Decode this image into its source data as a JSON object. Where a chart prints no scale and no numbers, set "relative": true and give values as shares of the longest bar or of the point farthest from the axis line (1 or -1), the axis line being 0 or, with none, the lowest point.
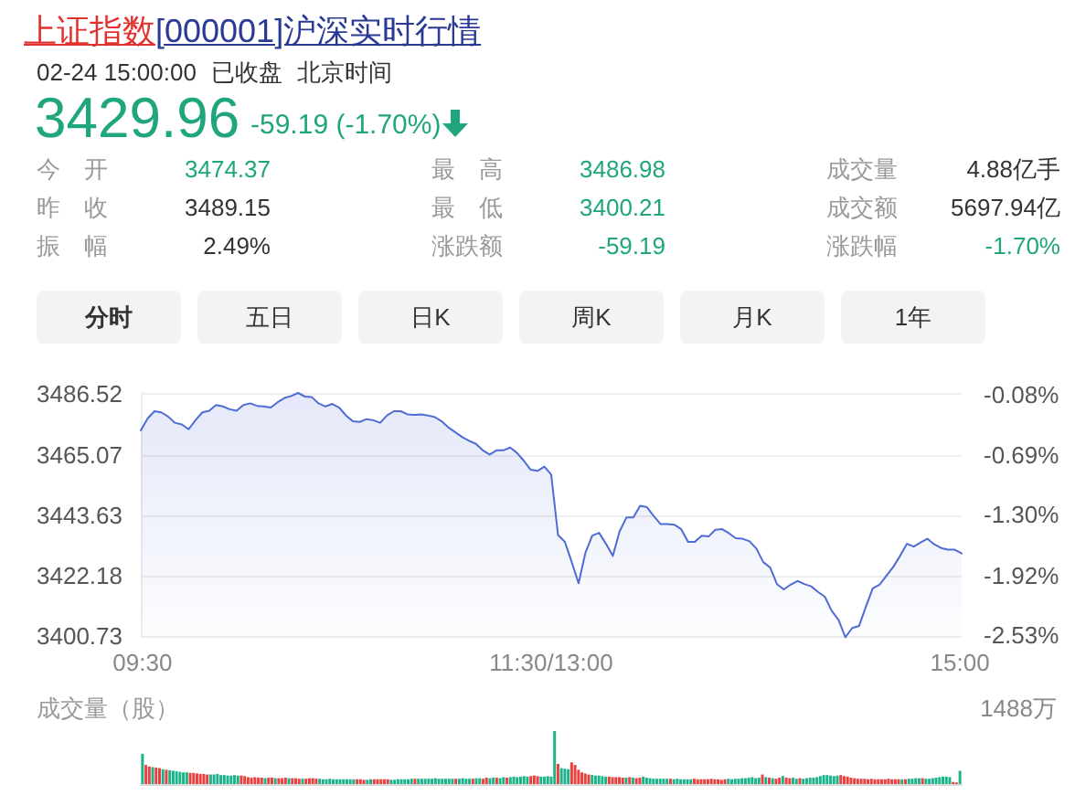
{
  "chart_data": [
    {
      "type": "other",
      "title": "上证指数",
      "subtitle": "[000001]沪深实时行情",
      "annotations": [
        "02-24 15:00:00",
        "已收盘",
        "北京时间",
        "3429.96",
        "-59.19 (-1.70%)",
        "今开",
        "3474.37",
        "最高",
        "3486.98",
        "成交量",
        "4.88亿手",
        "昨收",
        "3489.15",
        "最低",
        "3400.21",
        "成交额",
        "5697.94亿",
        "振幅",
        "2.49%",
        "涨跌额",
        "-59.19",
        "涨跌幅",
        "-1.70%",
        "分时",
        "五日",
        "日K",
        "周K",
        "月K",
        "1年"
      ]
    },
    {
      "type": "area",
      "color": "#4f6bd5",
      "tick_labels": "y",
      "categories": [
        null,
        null,
        null,
        null,
        null,
        null,
        null,
        null,
        null,
        null,
        null,
        null,
        null,
        null,
        null,
        null,
        null,
        null,
        null,
        null,
        null,
        null,
        null,
        null,
        null,
        null,
        null,
        null,
        null,
        null,
        null,
        null,
        null,
        null,
        null,
        null,
        null,
        null,
        null,
        null,
        null,
        null,
        null,
        null,
        null,
        null,
        null,
        null,
        null,
        null,
        null,
        null,
        null,
        null,
        null,
        null,
        null,
        null,
        null,
        null,
        null,
        null,
        null,
        null,
        null,
        null,
        null,
        null,
        null,
        null,
        null,
        null,
        null,
        null,
        null,
        null,
        null,
        null,
        null,
        null,
        null,
        null,
        null,
        null,
        null,
        null,
        null,
        null,
        null,
        null,
        null,
        null,
        null,
        null,
        null,
        null,
        null,
        null,
        null,
        null,
        null,
        null,
        null,
        null,
        null,
        null,
        null,
        null,
        null,
        null,
        null,
        null,
        null,
        null,
        null,
        null,
        null,
        null,
        null,
        null,
        null
      ],
      "values": [
        3473.7,
        3477.9,
        3480.5,
        3480.1,
        3478.6,
        3476.4,
        3475.8,
        3474.1,
        3477.3,
        3480.1,
        3480.7,
        3482.7,
        3482.2,
        3481.2,
        3480.7,
        3482.7,
        3483.3,
        3482.4,
        3482.2,
        3481.8,
        3483.7,
        3485.2,
        3485.9,
        3487.0,
        3485.7,
        3485.5,
        3483.3,
        3482.2,
        3483.1,
        3481.8,
        3479.0,
        3476.9,
        3476.7,
        3477.7,
        3477.3,
        3476.4,
        3479.0,
        3480.5,
        3480.5,
        3479.4,
        3479.2,
        3479.4,
        3479.0,
        3478.4,
        3476.9,
        3474.7,
        3473.0,
        3471.3,
        3470.0,
        3468.9,
        3466.6,
        3465.1,
        3466.6,
        3466.6,
        3467.6,
        3465.7,
        3462.9,
        3459.7,
        3459.3,
        3460.8,
        3458.0,
        3436.5,
        3434.1,
        3426.9,
        3419.4,
        3430.2,
        3436.3,
        3437.3,
        3433.4,
        3429.1,
        3437.8,
        3442.8,
        3442.8,
        3446.9,
        3446.4,
        3443.2,
        3440.4,
        3440.4,
        3440.2,
        3438.6,
        3434.1,
        3434.1,
        3436.3,
        3436.0,
        3438.4,
        3438.6,
        3437.1,
        3435.4,
        3435.2,
        3434.3,
        3431.7,
        3426.9,
        3425.0,
        3419.1,
        3417.2,
        3418.9,
        3420.2,
        3419.1,
        3418.3,
        3416.3,
        3414.6,
        3409.6,
        3406.4,
        3400.2,
        3403.5,
        3404.2,
        3411.1,
        3417.6,
        3418.9,
        3422.0,
        3425.2,
        3429.1,
        3433.4,
        3432.4,
        3433.9,
        3435.2,
        3433.2,
        3431.9,
        3431.3,
        3431.3,
        3430.0
      ],
      "ylim": [
        3400,
        3487
      ],
      "yticks": [
        3486.52,
        3465.07,
        3443.63,
        3422.18,
        3400.73
      ],
      "y2lim": [
        -2.555,
        -0.062
      ],
      "y2ticks": [
        {
          "value": -0.08,
          "label": "-0.08%"
        },
        {
          "value": -0.69,
          "label": "-0.69%"
        },
        {
          "value": -1.3,
          "label": "-1.30%"
        },
        {
          "value": -1.92,
          "label": "-1.92%"
        },
        {
          "value": -2.53,
          "label": "-2.53%"
        }
      ],
      "grid": "y"
    },
    {
      "type": "bar",
      "relative": true,
      "tick_labels": "x",
      "ylabel": "成交量（股）",
      "annotations": [
        "1488万"
      ],
      "categories": [
        "09:30",
        null,
        null,
        null,
        null,
        null,
        null,
        null,
        null,
        null,
        null,
        null,
        null,
        null,
        null,
        null,
        null,
        null,
        null,
        null,
        null,
        null,
        null,
        null,
        null,
        null,
        null,
        null,
        null,
        null,
        null,
        null,
        null,
        null,
        null,
        null,
        null,
        null,
        null,
        null,
        null,
        null,
        null,
        null,
        null,
        null,
        null,
        null,
        null,
        null,
        null,
        null,
        null,
        null,
        null,
        null,
        null,
        null,
        null,
        null,
        null,
        null,
        null,
        null,
        null,
        null,
        null,
        null,
        null,
        null,
        null,
        null,
        null,
        null,
        null,
        null,
        null,
        null,
        null,
        null,
        null,
        null,
        null,
        null,
        null,
        null,
        null,
        null,
        null,
        null,
        null,
        null,
        null,
        null,
        null,
        null,
        null,
        null,
        null,
        null,
        null,
        null,
        null,
        null,
        null,
        null,
        null,
        null,
        null,
        null,
        null,
        null,
        null,
        null,
        null,
        null,
        null,
        null,
        null,
        null,
        "11:30/13:00",
        null,
        null,
        null,
        null,
        null,
        null,
        null,
        null,
        null,
        null,
        null,
        null,
        null,
        null,
        null,
        null,
        null,
        null,
        null,
        null,
        null,
        null,
        null,
        null,
        null,
        null,
        null,
        null,
        null,
        null,
        null,
        null,
        null,
        null,
        null,
        null,
        null,
        null,
        null,
        null,
        null,
        null,
        null,
        null,
        null,
        null,
        null,
        null,
        null,
        null,
        null,
        null,
        null,
        null,
        null,
        null,
        null,
        null,
        null,
        null,
        null,
        null,
        null,
        null,
        null,
        null,
        null,
        null,
        null,
        null,
        null,
        null,
        null,
        null,
        null,
        null,
        null,
        null,
        null,
        null,
        null,
        null,
        null,
        null,
        null,
        null,
        null,
        null,
        null,
        null,
        null,
        null,
        null,
        null,
        null,
        null,
        null,
        null,
        null,
        null,
        null,
        null,
        null,
        null,
        null,
        null,
        null,
        null,
        null,
        null,
        null,
        null,
        null,
        null,
        null,
        null,
        null,
        null,
        null,
        "15:00"
      ],
      "values": [
        0.57,
        0.36,
        0.33,
        0.32,
        0.31,
        0.3,
        0.28,
        0.27,
        0.26,
        0.25,
        0.24,
        0.23,
        0.22,
        0.22,
        0.21,
        0.21,
        0.2,
        0.19,
        0.19,
        0.18,
        0.18,
        0.18,
        0.19,
        0.17,
        0.17,
        0.16,
        0.16,
        0.17,
        0.16,
        0.16,
        0.15,
        0.13,
        0.12,
        0.13,
        0.12,
        0.12,
        0.11,
        0.12,
        0.12,
        0.11,
        0.11,
        0.11,
        0.12,
        0.11,
        0.11,
        0.11,
        0.1,
        0.1,
        0.1,
        0.11,
        0.11,
        0.1,
        0.1,
        0.09,
        0.09,
        0.1,
        0.09,
        0.09,
        0.09,
        0.09,
        0.09,
        0.09,
        0.09,
        0.09,
        0.09,
        0.08,
        0.08,
        0.09,
        0.09,
        0.09,
        0.09,
        0.09,
        0.09,
        0.08,
        0.08,
        0.09,
        0.09,
        0.09,
        0.09,
        0.1,
        0.1,
        0.1,
        0.1,
        0.1,
        0.1,
        0.1,
        0.11,
        0.1,
        0.1,
        0.1,
        0.1,
        0.1,
        0.1,
        0.1,
        0.11,
        0.1,
        0.1,
        0.1,
        0.11,
        0.11,
        0.1,
        0.12,
        0.11,
        0.12,
        0.12,
        0.11,
        0.13,
        0.12,
        0.13,
        0.14,
        0.13,
        0.14,
        0.15,
        0.14,
        0.15,
        0.16,
        0.15,
        0.14,
        0.14,
        0.15,
        0.14,
        1,
        0.38,
        0.3,
        0.29,
        0.28,
        0.41,
        0.36,
        0.27,
        0.22,
        0.2,
        0.18,
        0.17,
        0.16,
        0.16,
        0.15,
        0.14,
        0.14,
        0.13,
        0.13,
        0.13,
        0.12,
        0.12,
        0.13,
        0.12,
        0.11,
        0.12,
        0.14,
        0.12,
        0.11,
        0.1,
        0.1,
        0.1,
        0.1,
        0.1,
        0.1,
        0.09,
        0.1,
        0.09,
        0.09,
        0.09,
        0.09,
        0.1,
        0.09,
        0.09,
        0.09,
        0.09,
        0.1,
        0.09,
        0.09,
        0.08,
        0.09,
        0.1,
        0.09,
        0.1,
        0.1,
        0.11,
        0.11,
        0.12,
        0.13,
        0.11,
        0.12,
        0.18,
        0.13,
        0.12,
        0.11,
        0.1,
        0.12,
        0.15,
        0.12,
        0.11,
        0.12,
        0.1,
        0.11,
        0.1,
        0.11,
        0.12,
        0.12,
        0.13,
        0.15,
        0.17,
        0.17,
        0.16,
        0.15,
        0.16,
        0.17,
        0.15,
        0.14,
        0.12,
        0.11,
        0.1,
        0.1,
        0.1,
        0.09,
        0.1,
        0.09,
        0.09,
        0.09,
        0.09,
        0.1,
        0.09,
        0.09,
        0.09,
        0.09,
        0.09,
        0.1,
        0.1,
        0.11,
        0.11,
        0.11,
        0.1,
        0.1,
        0.11,
        0.12,
        0.13,
        0.14,
        0.14,
        0.13,
        0.04,
        0.03,
        0.25
      ],
      "colors": [
        "#1db38a",
        "#e8413f",
        "#e8413f",
        "#1db38a",
        "#e8413f",
        "#e8413f",
        "#1db38a",
        "#e8413f",
        "#1db38a",
        "#1db38a",
        "#1db38a",
        "#1db38a",
        "#1db38a",
        "#1db38a",
        "#e8413f",
        "#e8413f",
        "#e8413f",
        "#e8413f",
        "#e8413f",
        "#e8413f",
        "#1db38a",
        "#1db38a",
        "#1db38a",
        "#1db38a",
        "#1db38a",
        "#1db38a",
        "#1db38a",
        "#1db38a",
        "#1db38a",
        "#e8413f",
        "#e8413f",
        "#e8413f",
        "#e8413f",
        "#e8413f",
        "#e8413f",
        "#e8413f",
        "#1db38a",
        "#e8413f",
        "#e8413f",
        "#1db38a",
        "#e8413f",
        "#e8413f",
        "#e8413f",
        "#1db38a",
        "#e8413f",
        "#e8413f",
        "#e8413f",
        "#1db38a",
        "#e8413f",
        "#e8413f",
        "#e8413f",
        "#e8413f",
        "#1db38a",
        "#1db38a",
        "#1db38a",
        "#1db38a",
        "#1db38a",
        "#1db38a",
        "#1db38a",
        "#1db38a",
        "#1db38a",
        "#1db38a",
        "#1db38a",
        "#e8413f",
        "#e8413f",
        "#e8413f",
        "#1db38a",
        "#1db38a",
        "#e8413f",
        "#e8413f",
        "#e8413f",
        "#e8413f",
        "#e8413f",
        "#1db38a",
        "#1db38a",
        "#1db38a",
        "#1db38a",
        "#1db38a",
        "#1db38a",
        "#1db38a",
        "#e8413f",
        "#1db38a",
        "#1db38a",
        "#1db38a",
        "#1db38a",
        "#1db38a",
        "#1db38a",
        "#1db38a",
        "#1db38a",
        "#1db38a",
        "#1db38a",
        "#1db38a",
        "#e8413f",
        "#1db38a",
        "#1db38a",
        "#1db38a",
        "#1db38a",
        "#e8413f",
        "#1db38a",
        "#1db38a",
        "#e8413f",
        "#e8413f",
        "#1db38a",
        "#1db38a",
        "#e8413f",
        "#1db38a",
        "#1db38a",
        "#e8413f",
        "#1db38a",
        "#1db38a",
        "#1db38a",
        "#1db38a",
        "#1db38a",
        "#1db38a",
        "#e8413f",
        "#e8413f",
        "#e8413f",
        "#1db38a",
        "#1db38a",
        "#1db38a",
        "#1db38a",
        "#1db38a",
        "#e8413f",
        "#1db38a",
        "#1db38a",
        "#1db38a",
        "#e8413f",
        "#e8413f",
        "#e8413f",
        "#e8413f",
        "#e8413f",
        "#e8413f",
        "#1db38a",
        "#1db38a",
        "#1db38a",
        "#1db38a",
        "#1db38a",
        "#e8413f",
        "#e8413f",
        "#e8413f",
        "#e8413f",
        "#e8413f",
        "#1db38a",
        "#e8413f",
        "#1db38a",
        "#e8413f",
        "#e8413f",
        "#1db38a",
        "#1db38a",
        "#1db38a",
        "#1db38a",
        "#1db38a",
        "#1db38a",
        "#1db38a",
        "#1db38a",
        "#e8413f",
        "#1db38a",
        "#1db38a",
        "#1db38a",
        "#1db38a",
        "#1db38a",
        "#1db38a",
        "#e8413f",
        "#e8413f",
        "#e8413f",
        "#e8413f",
        "#e8413f",
        "#e8413f",
        "#e8413f",
        "#e8413f",
        "#e8413f",
        "#e8413f",
        "#1db38a",
        "#1db38a",
        "#1db38a",
        "#1db38a",
        "#1db38a",
        "#1db38a",
        "#1db38a",
        "#1db38a",
        "#1db38a",
        "#1db38a",
        "#e8413f",
        "#1db38a",
        "#e8413f",
        "#1db38a",
        "#e8413f",
        "#e8413f",
        "#1db38a",
        "#e8413f",
        "#e8413f",
        "#1db38a",
        "#1db38a",
        "#e8413f",
        "#1db38a",
        "#1db38a",
        "#1db38a",
        "#1db38a",
        "#1db38a",
        "#1db38a",
        "#1db38a",
        "#1db38a",
        "#1db38a",
        "#1db38a",
        "#1db38a",
        "#e8413f",
        "#e8413f",
        "#e8413f",
        "#e8413f",
        "#e8413f",
        "#e8413f",
        "#e8413f",
        "#e8413f",
        "#e8413f",
        "#e8413f",
        "#e8413f",
        "#e8413f",
        "#e8413f",
        "#e8413f",
        "#e8413f",
        "#e8413f",
        "#e8413f",
        "#e8413f",
        "#1db38a",
        "#e8413f",
        "#1db38a",
        "#1db38a",
        "#1db38a",
        "#1db38a",
        "#e8413f",
        "#1db38a",
        "#1db38a",
        "#1db38a",
        "#1db38a",
        "#1db38a",
        "#1db38a",
        "#1db38a",
        "#1db38a",
        "#e8413f",
        "#e8413f",
        "#1db38a"
      ]
    }
  ]
}
